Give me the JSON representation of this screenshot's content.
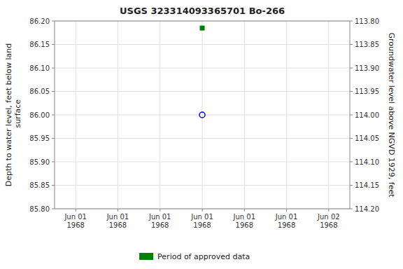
{
  "chart_data": {
    "type": "scatter",
    "title": "USGS 323314093365701 Bo-266",
    "y_label": "Depth to water level, feet below land\n surface",
    "y2_label": "Groundwater level above NGVD 1929, feet",
    "categories": [
      "Jun 01\n1968",
      "Jun 01\n1968",
      "Jun 01\n1968",
      "Jun 01\n1968",
      "Jun 01\n1968",
      "Jun 01\n1968",
      "Jun 02\n1968"
    ],
    "series": [
      {
        "color": "#0000ff",
        "marker": "circle-open",
        "values": [
          null,
          null,
          null,
          86.0,
          null,
          null,
          null
        ]
      },
      {
        "name": "Period of approved data",
        "color": "#008000",
        "marker": "square",
        "values": [
          null,
          null,
          null,
          86.185,
          null,
          null,
          null
        ]
      }
    ],
    "ylim": [
      85.8,
      86.2
    ],
    "yticks": [
      {
        "value": 85.8,
        "label": "85.80"
      },
      {
        "value": 85.85,
        "label": "85.85"
      },
      {
        "value": 85.9,
        "label": "85.90"
      },
      {
        "value": 85.95,
        "label": "85.95"
      },
      {
        "value": 86.0,
        "label": "86.00"
      },
      {
        "value": 86.05,
        "label": "86.05"
      },
      {
        "value": 86.1,
        "label": "86.10"
      },
      {
        "value": 86.15,
        "label": "86.15"
      },
      {
        "value": 86.2,
        "label": "86.20"
      }
    ],
    "y2lim": [
      114.2,
      113.8
    ],
    "y2ticks": [
      {
        "value": 114.2,
        "label": "114.20"
      },
      {
        "value": 114.15,
        "label": "114.15"
      },
      {
        "value": 114.1,
        "label": "114.10"
      },
      {
        "value": 114.05,
        "label": "114.05"
      },
      {
        "value": 114.0,
        "label": "114.00"
      },
      {
        "value": 113.95,
        "label": "113.95"
      },
      {
        "value": 113.9,
        "label": "113.90"
      },
      {
        "value": 113.85,
        "label": "113.85"
      },
      {
        "value": 113.8,
        "label": "113.80"
      }
    ],
    "grid": true,
    "legend": "bottom"
  }
}
